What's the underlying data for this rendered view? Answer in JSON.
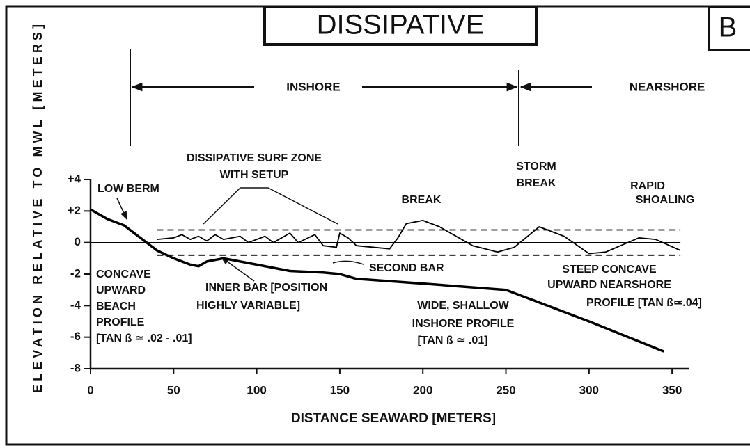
{
  "chart_data": {
    "type": "line",
    "title": "DISSIPATIVE",
    "panel": "B",
    "xlabel": "DISTANCE SEAWARD [METERS]",
    "ylabel": "ELEVATION RELATIVE TO MWL [METERS]",
    "xlim": [
      0,
      360
    ],
    "ylim": [
      -8,
      4
    ],
    "xticks": [
      0,
      50,
      100,
      150,
      200,
      250,
      300,
      350
    ],
    "yticks": [
      {
        "value": 4,
        "label": "+4"
      },
      {
        "value": 2,
        "label": "+2"
      },
      0,
      -2,
      -4,
      -6,
      -8
    ],
    "zones": [
      "INSHORE",
      "NEARSHORE"
    ],
    "series": [
      {
        "color": "#000000",
        "width": 3.5,
        "dash": false,
        "x": [
          0,
          10,
          20,
          30,
          40,
          50,
          60,
          65,
          70,
          80,
          100,
          120,
          140,
          150,
          160,
          200,
          250,
          300,
          345
        ],
        "values": [
          2.1,
          1.5,
          1.1,
          0.3,
          -0.5,
          -1.0,
          -1.4,
          -1.5,
          -1.2,
          -1.0,
          -1.4,
          -1.8,
          -1.9,
          -2.0,
          -2.3,
          -2.6,
          -3.0,
          -5.0,
          -6.9
        ]
      },
      {
        "color": "#000000",
        "width": 1.8,
        "dash": false,
        "x": [
          40,
          50,
          55,
          60,
          65,
          70,
          75,
          80,
          90,
          95,
          105,
          110,
          120,
          125,
          135,
          140,
          148,
          150,
          155,
          160,
          180,
          185,
          190,
          200,
          210,
          230,
          245,
          255,
          270,
          285,
          300,
          310,
          330,
          340,
          355
        ],
        "values": [
          0.2,
          0.3,
          0.5,
          0.2,
          0.4,
          0.1,
          0.5,
          0.2,
          0.4,
          0,
          0.4,
          0,
          0.6,
          0,
          0.5,
          -0.2,
          -0.3,
          0.6,
          0.3,
          -0.2,
          -0.4,
          0.3,
          1.2,
          1.4,
          1.0,
          -0.2,
          -0.6,
          -0.3,
          1.0,
          0.4,
          -0.7,
          -0.6,
          0.3,
          0.2,
          -0.5
        ]
      },
      {
        "color": "#000000",
        "width": 1.5,
        "dash": false,
        "x": [
          0,
          355
        ],
        "values": [
          0,
          0
        ]
      },
      {
        "color": "#000000",
        "width": 1.8,
        "dash": true,
        "x": [
          40,
          355
        ],
        "values": [
          0.8,
          0.8
        ]
      },
      {
        "color": "#000000",
        "width": 1.8,
        "dash": true,
        "x": [
          40,
          355
        ],
        "values": [
          -0.8,
          -0.8
        ]
      }
    ],
    "annotations": [
      "LOW BERM",
      "DISSIPATIVE SURF ZONE",
      "WITH SETUP",
      "BREAK",
      "STORM",
      "BREAK",
      "RAPID",
      "SHOALING",
      "SECOND BAR",
      "STEEP CONCAVE",
      "UPWARD NEARSHORE",
      "PROFILE [TAN ß≃.04]",
      "CONCAVE",
      "UPWARD",
      "BEACH",
      "PROFILE",
      "[TAN ß ≃ .02 - .01]",
      "INNER BAR [POSITION",
      "HIGHLY VARIABLE]",
      "WIDE, SHALLOW",
      "INSHORE PROFILE",
      "[TAN ß ≃ .01]"
    ]
  }
}
